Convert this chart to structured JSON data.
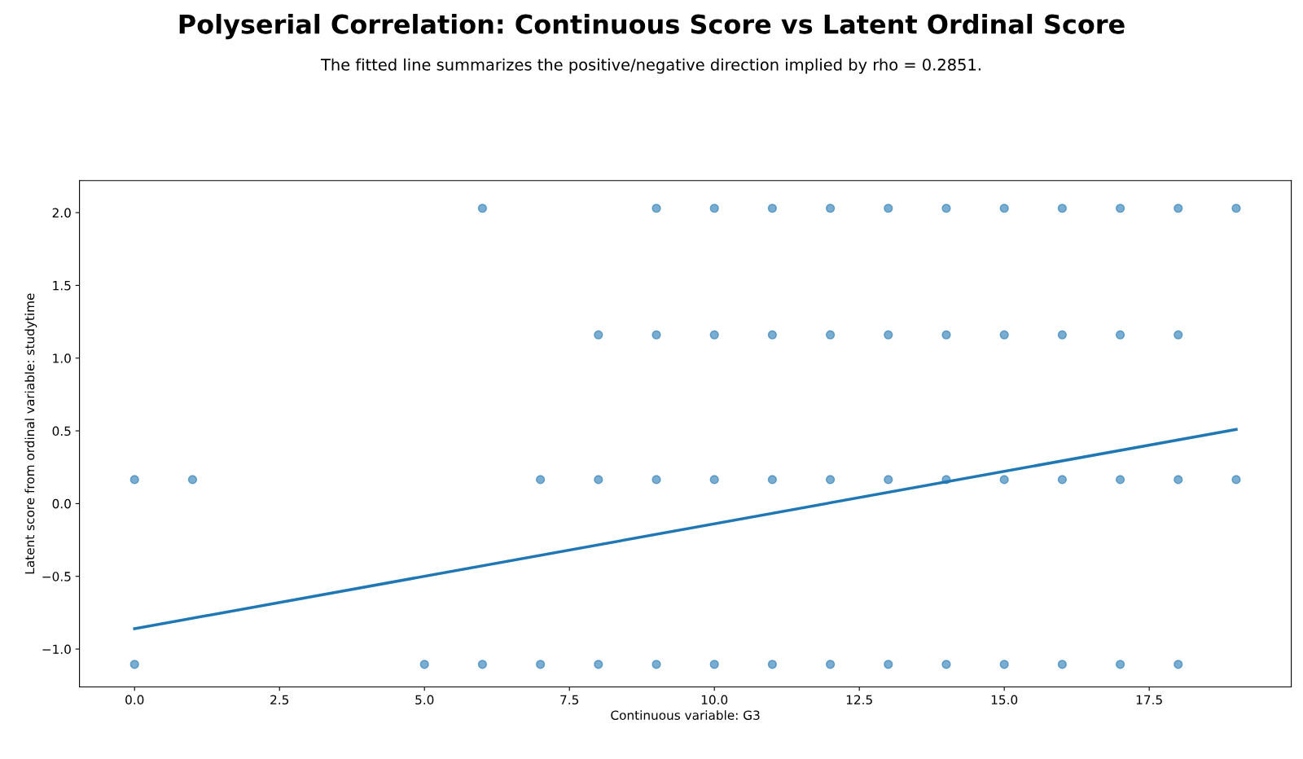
{
  "chart_data": {
    "type": "scatter",
    "title": "Polyserial Correlation: Continuous Score vs Latent Ordinal Score",
    "subtitle": "The fitted line summarizes the positive/negative direction implied by rho = 0.2851.",
    "xlabel": "Continuous variable: G3",
    "ylabel": "Latent score from ordinal variable: studytime",
    "series": [
      {
        "color": "#1f77b4",
        "x": [
          6,
          9,
          10,
          11,
          12,
          13,
          14,
          15,
          16,
          17,
          18,
          19,
          8,
          9,
          10,
          11,
          12,
          13,
          14,
          15,
          16,
          17,
          18,
          0,
          1,
          7,
          8,
          9,
          10,
          11,
          12,
          13,
          14,
          15,
          16,
          17,
          18,
          19,
          0,
          5,
          6,
          7,
          8,
          9,
          10,
          11,
          12,
          13,
          14,
          15,
          16,
          17,
          18
        ],
        "values": [
          2.03,
          2.03,
          2.03,
          2.03,
          2.03,
          2.03,
          2.03,
          2.03,
          2.03,
          2.03,
          2.03,
          2.03,
          1.16,
          1.16,
          1.16,
          1.16,
          1.16,
          1.16,
          1.16,
          1.16,
          1.16,
          1.16,
          1.16,
          0.165,
          0.165,
          0.165,
          0.165,
          0.165,
          0.165,
          0.165,
          0.165,
          0.165,
          0.165,
          0.165,
          0.165,
          0.165,
          0.165,
          0.165,
          -1.105,
          -1.105,
          -1.105,
          -1.105,
          -1.105,
          -1.105,
          -1.105,
          -1.105,
          -1.105,
          -1.105,
          -1.105,
          -1.105,
          -1.105,
          -1.105,
          -1.105
        ]
      },
      {
        "type": "line",
        "marker": "none",
        "color": "#1f77b4",
        "x": [
          0,
          19
        ],
        "values": [
          -0.86,
          0.51
        ]
      }
    ],
    "xlim": [
      -0.95,
      19.95
    ],
    "ylim": [
      -1.26,
      2.22
    ],
    "xticks": [
      {
        "value": 0,
        "label": "0.0"
      },
      {
        "value": 2.5,
        "label": "2.5"
      },
      {
        "value": 5,
        "label": "5.0"
      },
      {
        "value": 7.5,
        "label": "7.5"
      },
      {
        "value": 10,
        "label": "10.0"
      },
      {
        "value": 12.5,
        "label": "12.5"
      },
      {
        "value": 15,
        "label": "15.0"
      },
      {
        "value": 17.5,
        "label": "17.5"
      }
    ],
    "yticks": [
      {
        "value": -1,
        "label": "−1.0"
      },
      {
        "value": -0.5,
        "label": "−0.5"
      },
      {
        "value": 0,
        "label": "0.0"
      },
      {
        "value": 0.5,
        "label": "0.5"
      },
      {
        "value": 1,
        "label": "1.0"
      },
      {
        "value": 1.5,
        "label": "1.5"
      },
      {
        "value": 2,
        "label": "2.0"
      }
    ],
    "grid": false,
    "legend": false,
    "marker": "circle"
  }
}
